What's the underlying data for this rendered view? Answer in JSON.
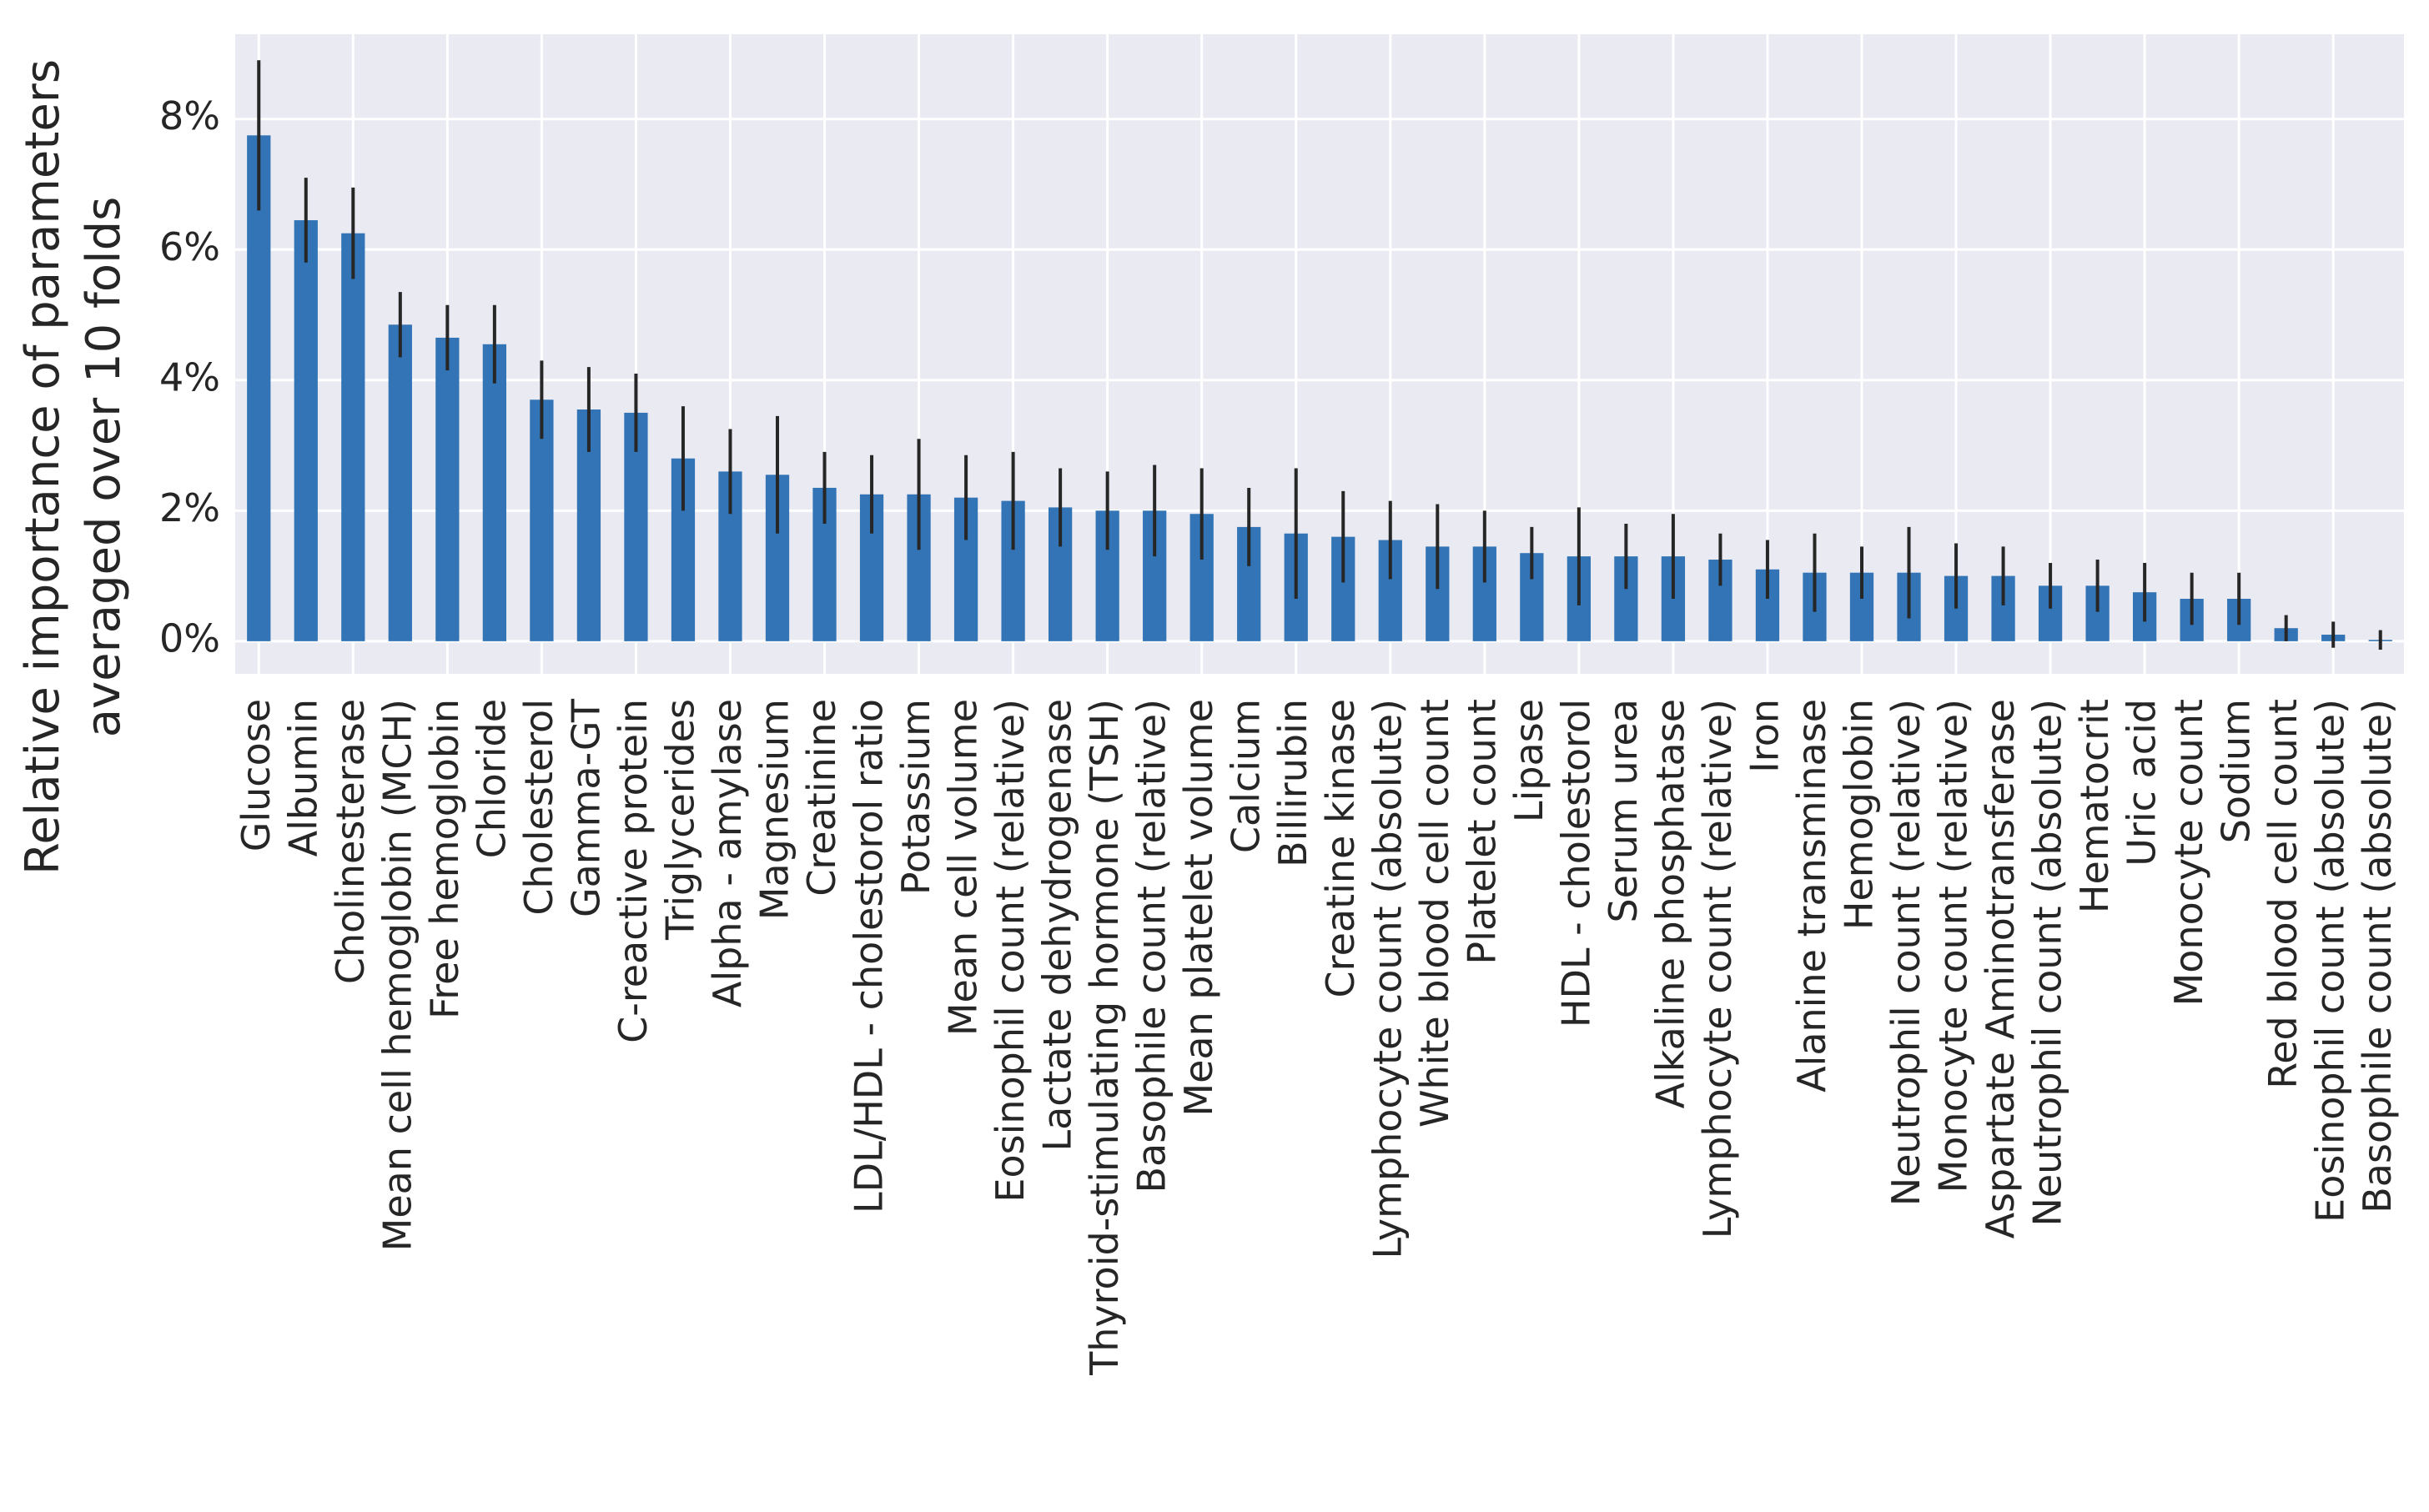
{
  "chart_data": {
    "type": "bar",
    "ylabel": [
      "Relative importance of parameters",
      "averaged over 10 folds"
    ],
    "categories": [
      "Glucose",
      "Albumin",
      "Cholinesterase",
      "Mean cell hemoglobin (MCH)",
      "Free hemoglobin",
      "Chloride",
      "Cholesterol",
      "Gamma-GT",
      "C-reactive protein",
      "Triglycerides",
      "Alpha - amylase",
      "Magnesium",
      "Creatinine",
      "LDL/HDL - cholestorol ratio",
      "Potassium",
      "Mean cell volume",
      "Eosinophil count (relative)",
      "Lactate dehydrogenase",
      "Thyroid-stimulating hormone (TSH)",
      "Basophile count (relative)",
      "Mean platelet volume",
      "Calcium",
      "Billirubin",
      "Creatine kinase",
      "Lymphocyte count (absolute)",
      "White blood cell count",
      "Platelet count",
      "Lipase",
      "HDL - cholestorol",
      "Serum urea",
      "Alkaline phosphatase",
      "Lymphocyte count (relative)",
      "Iron",
      "Alanine transminase",
      "Hemoglobin",
      "Neutrophil count (relative)",
      "Monocyte count (relative)",
      "Aspartate Aminotransferase",
      "Neutrophil count (absolute)",
      "Hematocrit",
      "Uric acid",
      "Monocyte count",
      "Sodium",
      "Red blood cell count",
      "Eosinophil count (absolute)",
      "Basophile count (absolute)"
    ],
    "values": [
      7.75,
      6.45,
      6.25,
      4.85,
      4.65,
      4.55,
      3.7,
      3.55,
      3.5,
      2.8,
      2.6,
      2.55,
      2.35,
      2.25,
      2.25,
      2.2,
      2.15,
      2.05,
      2.0,
      2.0,
      1.95,
      1.75,
      1.65,
      1.6,
      1.55,
      1.45,
      1.45,
      1.35,
      1.3,
      1.3,
      1.3,
      1.25,
      1.1,
      1.05,
      1.05,
      1.05,
      1.0,
      1.0,
      0.85,
      0.85,
      0.75,
      0.65,
      0.65,
      0.2,
      0.1,
      0.02
    ],
    "errors": [
      1.15,
      0.65,
      0.7,
      0.5,
      0.5,
      0.6,
      0.6,
      0.65,
      0.6,
      0.8,
      0.65,
      0.9,
      0.55,
      0.6,
      0.85,
      0.65,
      0.75,
      0.6,
      0.6,
      0.7,
      0.7,
      0.6,
      1.0,
      0.7,
      0.6,
      0.65,
      0.55,
      0.4,
      0.75,
      0.5,
      0.65,
      0.4,
      0.45,
      0.6,
      0.4,
      0.7,
      0.5,
      0.45,
      0.35,
      0.4,
      0.45,
      0.4,
      0.4,
      0.2,
      0.2,
      0.15
    ],
    "color": "#3274b5",
    "error_color": "#262626",
    "ylim": [
      -0.5,
      9.3
    ],
    "yticks": [
      {
        "value": 0,
        "label": "0%"
      },
      {
        "value": 2,
        "label": "2%"
      },
      {
        "value": 4,
        "label": "4%"
      },
      {
        "value": 6,
        "label": "6%"
      },
      {
        "value": 8,
        "label": "8%"
      }
    ],
    "grid": true
  }
}
